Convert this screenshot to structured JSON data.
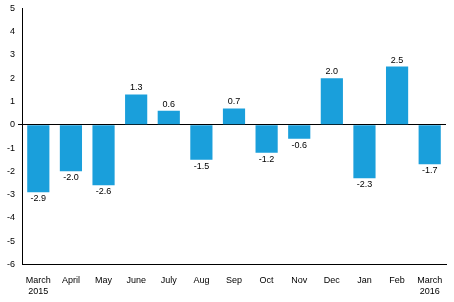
{
  "chart_data": {
    "type": "bar",
    "categories": [
      "March 2015",
      "April",
      "May",
      "June",
      "July",
      "Aug",
      "Sep",
      "Oct",
      "Nov",
      "Dec",
      "Jan",
      "Feb",
      "March 2016"
    ],
    "values": [
      -2.9,
      -2.0,
      -2.6,
      1.3,
      0.6,
      -1.5,
      0.7,
      -1.2,
      -0.6,
      2.0,
      -2.3,
      2.5,
      -1.7
    ],
    "value_labels": [
      "-2.9",
      "-2.0",
      "-2.6",
      "1.3",
      "0.6",
      "-1.5",
      "0.7",
      "-1.2",
      "-0.6",
      "2.0",
      "-2.3",
      "2.5",
      "-1.7"
    ],
    "color": "#1a9fdb",
    "ylim": [
      -6,
      5
    ],
    "yticks": [
      -6,
      -5,
      -4,
      -3,
      -2,
      -1,
      0,
      1,
      2,
      3,
      4,
      5
    ],
    "grid": false,
    "data_labels": true
  }
}
